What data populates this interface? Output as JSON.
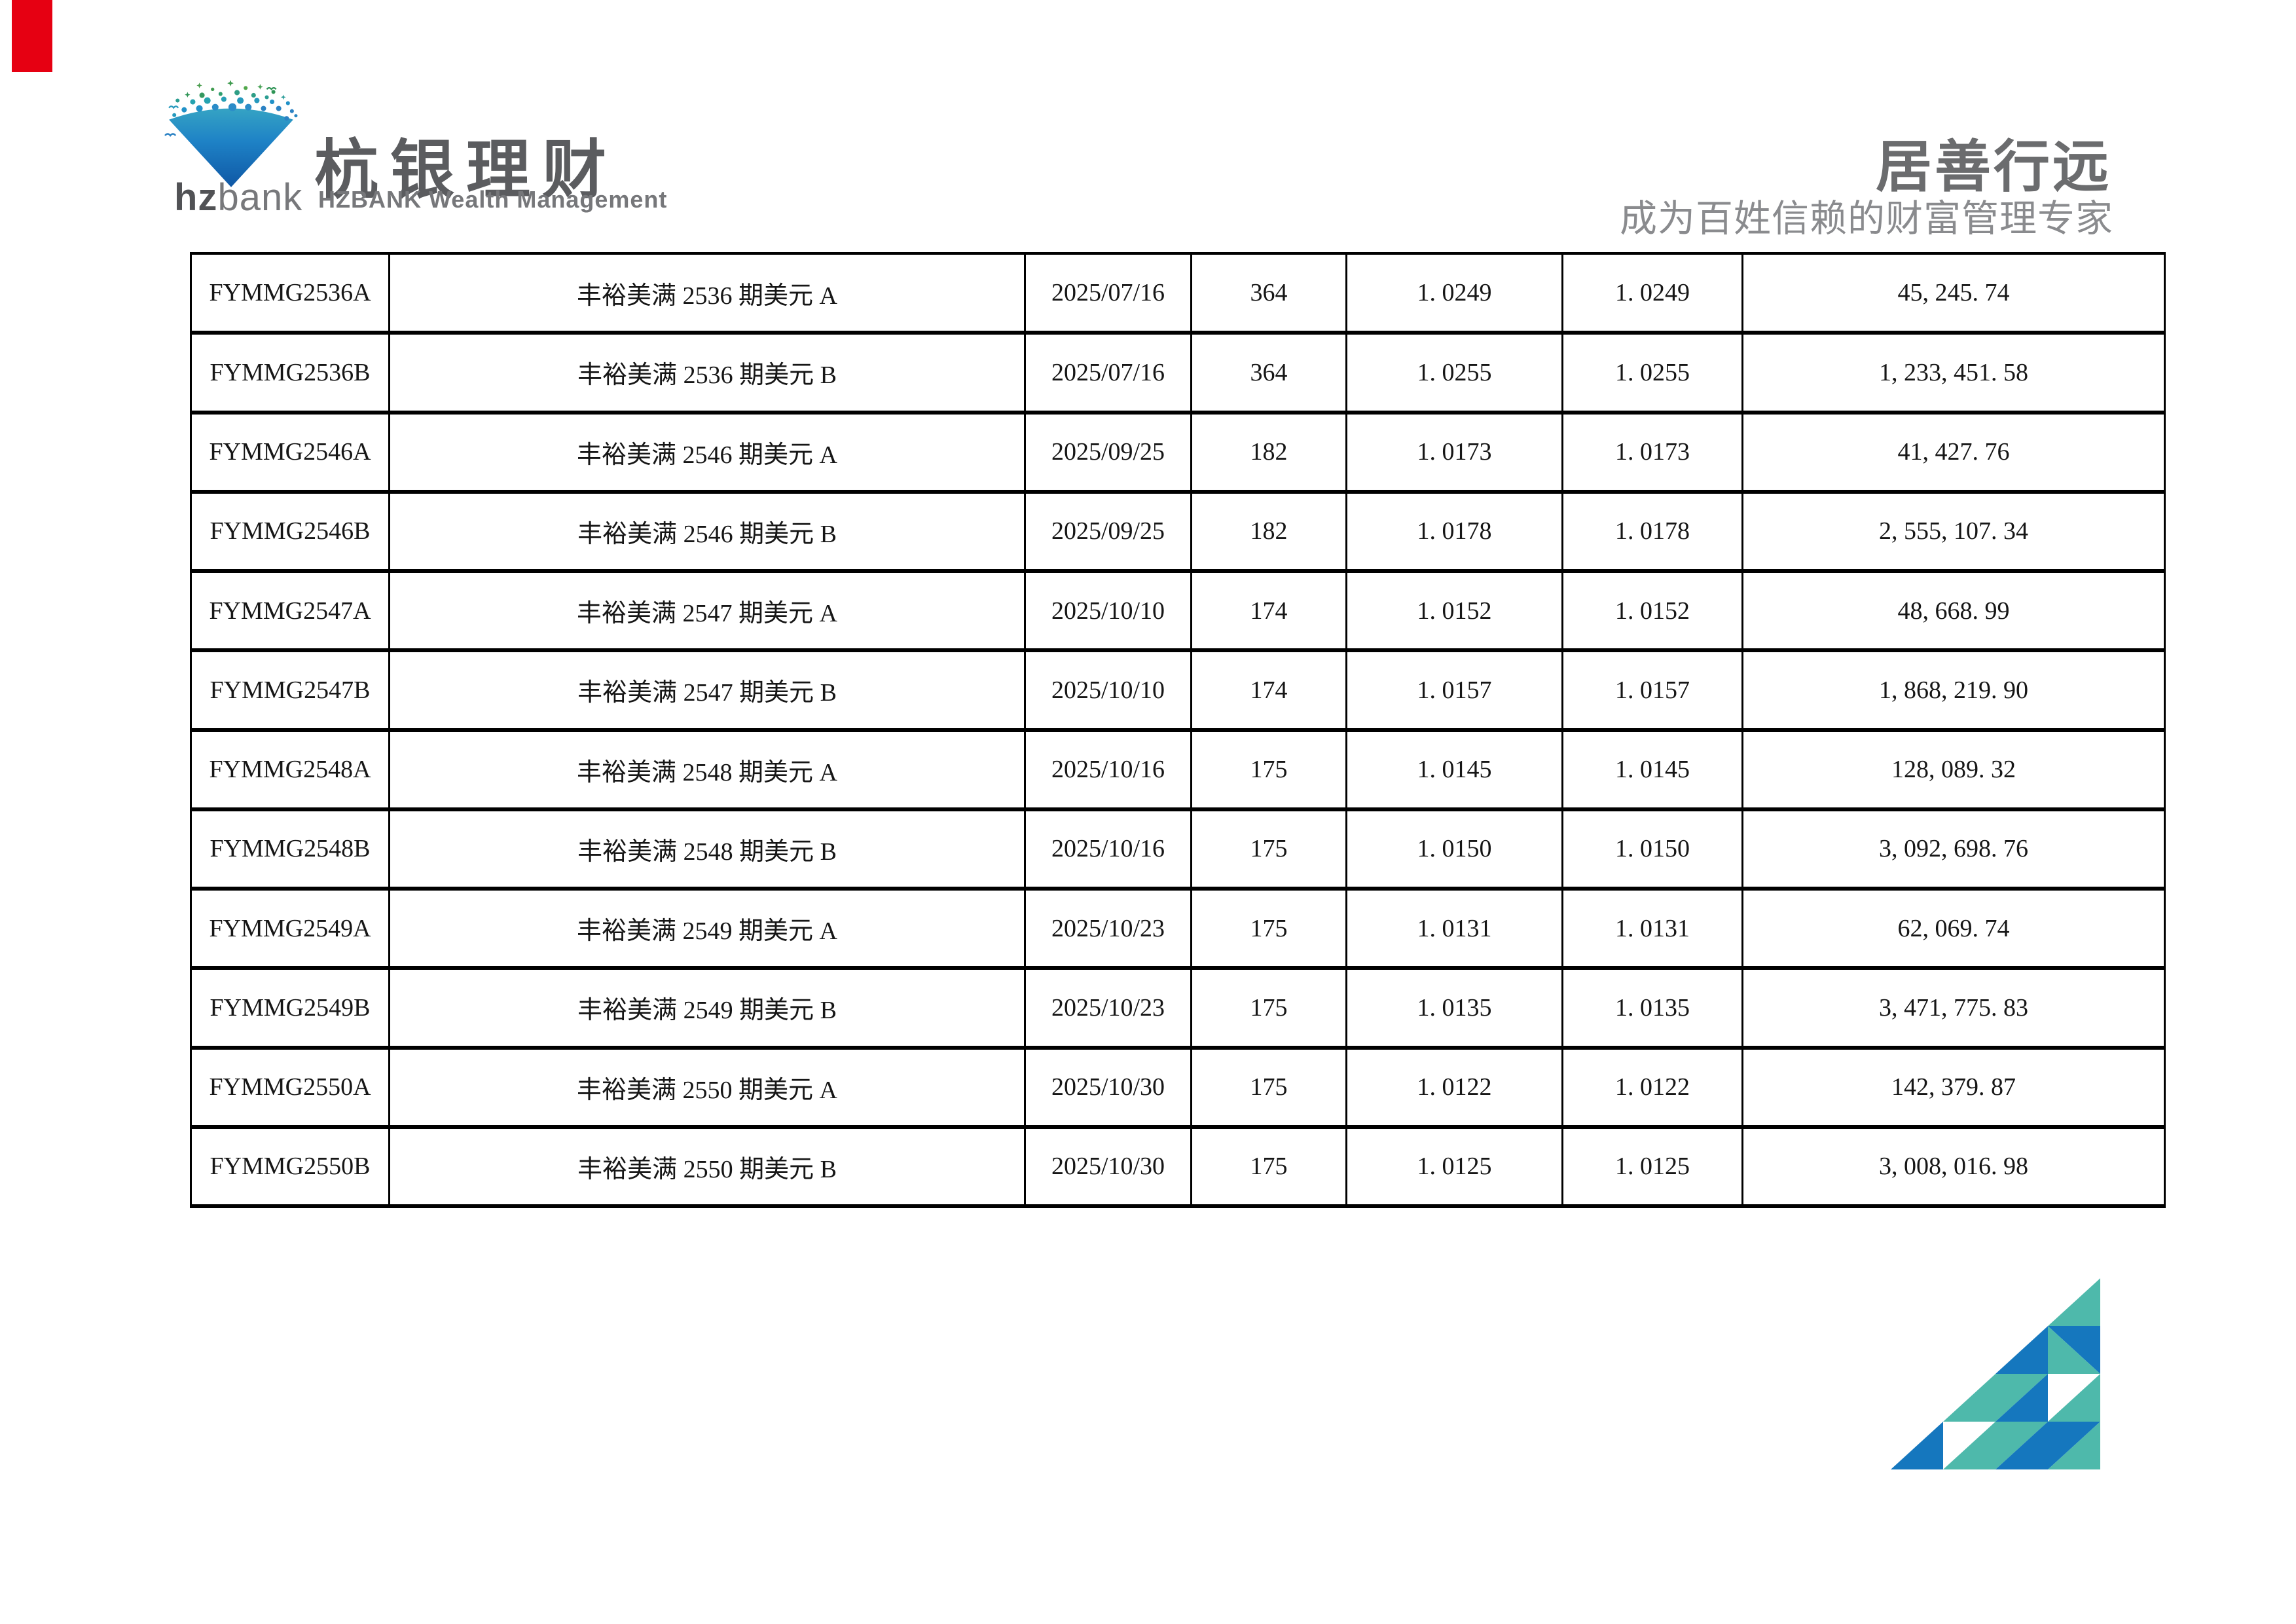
{
  "page": {
    "corner_mark_color": "#e60012",
    "background": "#ffffff"
  },
  "header": {
    "logo": {
      "mark_icon": "hzbank-diamond-burst-logo",
      "wordmark_bold": "hz",
      "wordmark_light": "bank",
      "brand_cn": "杭银理财",
      "brand_en": "HZBANK Wealth Management"
    },
    "slogan_main": "居善行远",
    "slogan_sub": "成为百姓信赖的财富管理专家"
  },
  "table": {
    "cell_names": [
      "product-code",
      "product-name",
      "open-date",
      "term-days",
      "net-value",
      "cumulative-net-value",
      "amount"
    ],
    "rows": [
      [
        "FYMMG2536A",
        "丰裕美满 2536 期美元 A",
        "2025/07/16",
        "364",
        "1. 0249",
        "1. 0249",
        "45, 245. 74"
      ],
      [
        "FYMMG2536B",
        "丰裕美满 2536 期美元 B",
        "2025/07/16",
        "364",
        "1. 0255",
        "1. 0255",
        "1, 233, 451. 58"
      ],
      [
        "FYMMG2546A",
        "丰裕美满 2546 期美元 A",
        "2025/09/25",
        "182",
        "1. 0173",
        "1. 0173",
        "41, 427. 76"
      ],
      [
        "FYMMG2546B",
        "丰裕美满 2546 期美元 B",
        "2025/09/25",
        "182",
        "1. 0178",
        "1. 0178",
        "2, 555, 107. 34"
      ],
      [
        "FYMMG2547A",
        "丰裕美满 2547 期美元 A",
        "2025/10/10",
        "174",
        "1. 0152",
        "1. 0152",
        "48, 668. 99"
      ],
      [
        "FYMMG2547B",
        "丰裕美满 2547 期美元 B",
        "2025/10/10",
        "174",
        "1. 0157",
        "1. 0157",
        "1, 868, 219. 90"
      ],
      [
        "FYMMG2548A",
        "丰裕美满 2548 期美元 A",
        "2025/10/16",
        "175",
        "1. 0145",
        "1. 0145",
        "128, 089. 32"
      ],
      [
        "FYMMG2548B",
        "丰裕美满 2548 期美元 B",
        "2025/10/16",
        "175",
        "1. 0150",
        "1. 0150",
        "3, 092, 698. 76"
      ],
      [
        "FYMMG2549A",
        "丰裕美满 2549 期美元 A",
        "2025/10/23",
        "175",
        "1. 0131",
        "1. 0131",
        "62, 069. 74"
      ],
      [
        "FYMMG2549B",
        "丰裕美满 2549 期美元 B",
        "2025/10/23",
        "175",
        "1. 0135",
        "1. 0135",
        "3, 471, 775. 83"
      ],
      [
        "FYMMG2550A",
        "丰裕美满 2550 期美元 A",
        "2025/10/30",
        "175",
        "1. 0122",
        "1. 0122",
        "142, 379. 87"
      ],
      [
        "FYMMG2550B",
        "丰裕美满 2550 期美元 B",
        "2025/10/30",
        "175",
        "1. 0125",
        "1. 0125",
        "3, 008, 016. 98"
      ]
    ]
  },
  "colors": {
    "red": "#e60012",
    "triangle_blue": "#1577be",
    "triangle_teal": "#4eb9ab",
    "logo_blue_deep": "#0f57a5",
    "logo_blue_mid": "#1e82c6",
    "logo_teal_top": "#35a3c4",
    "logo_green": "#3f9b4f"
  }
}
